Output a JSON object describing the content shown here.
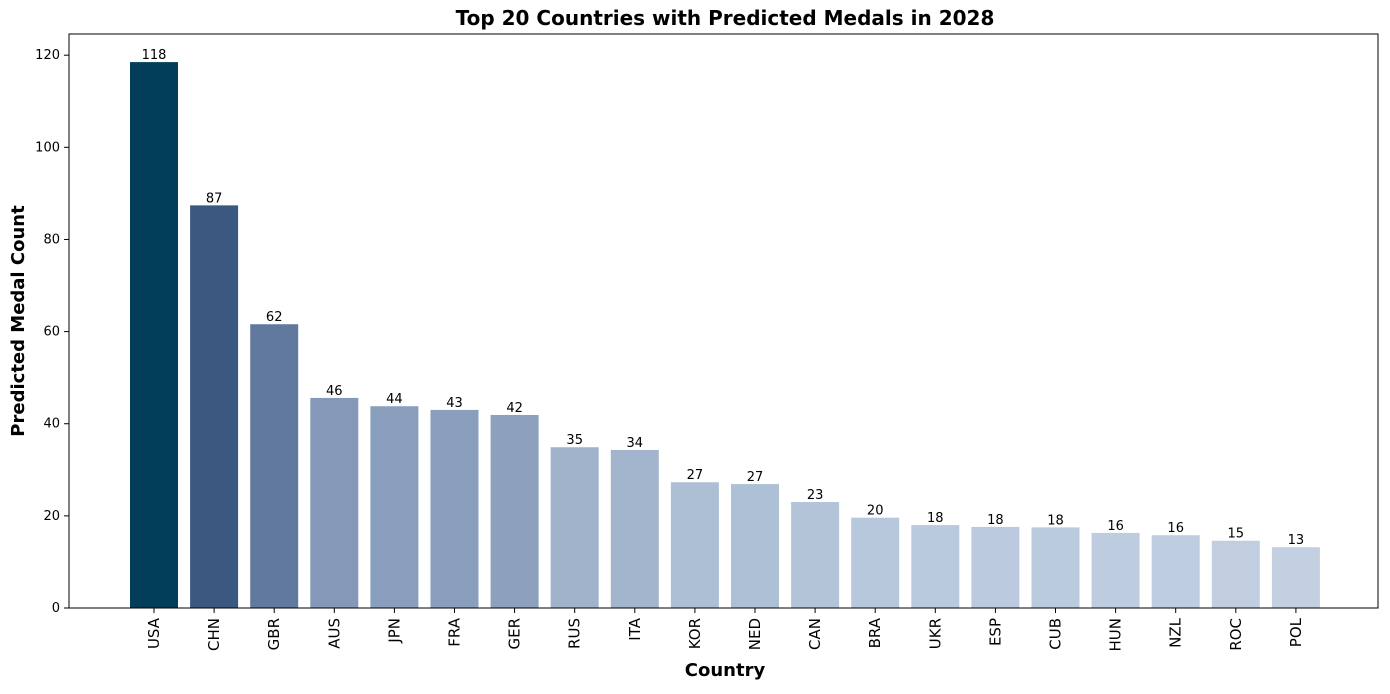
{
  "chart_data": {
    "type": "bar",
    "title": "Top 20 Countries with Predicted Medals in 2028",
    "x_label": "Country",
    "y_label": "Predicted Medal Count",
    "categories": [
      "USA",
      "CHN",
      "GBR",
      "AUS",
      "JPN",
      "FRA",
      "GER",
      "RUS",
      "ITA",
      "KOR",
      "NED",
      "CAN",
      "BRA",
      "UKR",
      "ESP",
      "CUB",
      "HUN",
      "NZL",
      "ROC",
      "POL"
    ],
    "values": [
      118.5,
      87.4,
      61.6,
      45.6,
      43.8,
      43.0,
      41.9,
      34.9,
      34.3,
      27.3,
      26.9,
      23.0,
      19.6,
      18.0,
      17.6,
      17.5,
      16.3,
      15.8,
      14.6,
      13.2
    ],
    "value_labels": [
      "118",
      "87",
      "62",
      "46",
      "44",
      "43",
      "42",
      "35",
      "34",
      "27",
      "27",
      "23",
      "20",
      "18",
      "18",
      "18",
      "16",
      "16",
      "15",
      "13"
    ],
    "colors": [
      "#023e5a",
      "#3b5880",
      "#62799e",
      "#8499b8",
      "#899fbd",
      "#8a9fbd",
      "#8da1bf",
      "#a0b3cb",
      "#a2b5cc",
      "#adbfd4",
      "#aec0d5",
      "#b3c4d8",
      "#b8c8dc",
      "#bacadd",
      "#bbcade",
      "#bbcbde",
      "#bdccdf",
      "#becddf",
      "#c0cee0",
      "#c2d0e1"
    ],
    "ylim": [
      0,
      124.6
    ],
    "yticks": [
      0,
      20,
      40,
      60,
      80,
      100,
      120
    ],
    "grid": false
  }
}
